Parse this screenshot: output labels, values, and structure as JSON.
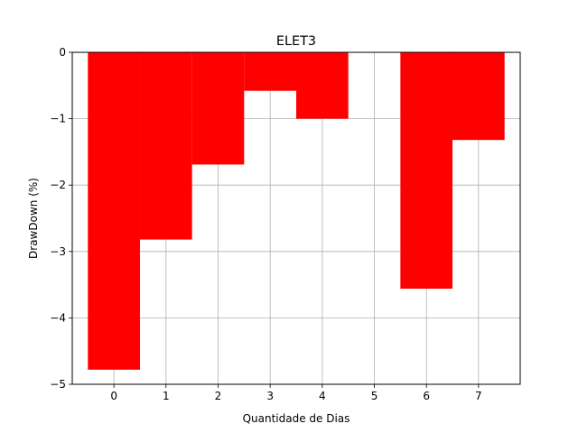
{
  "chart_data": {
    "type": "bar",
    "title": "ELET3",
    "xlabel": "Quantidade de Dias",
    "ylabel": "DrawDown (%)",
    "grid": true,
    "bar_color": "#ff0000",
    "categories": [
      0,
      1,
      2,
      3,
      4,
      5,
      6,
      7
    ],
    "values": [
      -4.78,
      -2.82,
      -1.69,
      -0.58,
      -1.0,
      0,
      -3.56,
      -1.32
    ],
    "xlim": [
      -0.8,
      7.8
    ],
    "ylim": [
      -5,
      0
    ],
    "xticks": [
      "0",
      "1",
      "2",
      "3",
      "4",
      "5",
      "6",
      "7"
    ],
    "yticks": [
      0,
      -1,
      -2,
      -3,
      -4,
      -5
    ],
    "ytick_labels": [
      "0",
      "−1",
      "−2",
      "−3",
      "−4",
      "−5"
    ]
  }
}
